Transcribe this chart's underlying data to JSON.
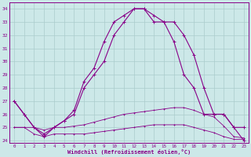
{
  "xlabel": "Windchill (Refroidissement éolien,°C)",
  "background_color": "#cce8e8",
  "grid_color": "#aacccc",
  "line_color": "#880088",
  "x_ticks": [
    0,
    1,
    2,
    3,
    4,
    5,
    6,
    7,
    8,
    9,
    10,
    11,
    12,
    13,
    14,
    15,
    16,
    17,
    18,
    19,
    20,
    21,
    22,
    23
  ],
  "ylim": [
    23.8,
    34.5
  ],
  "xlim": [
    -0.5,
    23.5
  ],
  "yticks": [
    24,
    25,
    26,
    27,
    28,
    29,
    30,
    31,
    32,
    33,
    34
  ],
  "series1": [
    27,
    26,
    25,
    24.5,
    25,
    25.5,
    26,
    28,
    29,
    30,
    32,
    33,
    34,
    34,
    33.5,
    33,
    33,
    32,
    30.5,
    28,
    26,
    26,
    25,
    25
  ],
  "series2": [
    27,
    26,
    25,
    24.3,
    25,
    25.5,
    26.3,
    28.5,
    29.5,
    31.5,
    33,
    33.5,
    34,
    34,
    33,
    33,
    31.5,
    29,
    28,
    26,
    26,
    26,
    25,
    24
  ],
  "series3": [
    25,
    25,
    25,
    24.8,
    25,
    25,
    25.1,
    25.2,
    25.4,
    25.6,
    25.8,
    26.0,
    26.1,
    26.2,
    26.3,
    26.4,
    26.5,
    26.5,
    26.3,
    26.0,
    25.8,
    25.1,
    24.3,
    24.2
  ],
  "series4": [
    25,
    25,
    24.5,
    24.3,
    24.5,
    24.5,
    24.5,
    24.5,
    24.6,
    24.7,
    24.8,
    24.9,
    25.0,
    25.1,
    25.2,
    25.2,
    25.2,
    25.2,
    25.0,
    24.8,
    24.6,
    24.3,
    24.1,
    24.1
  ]
}
